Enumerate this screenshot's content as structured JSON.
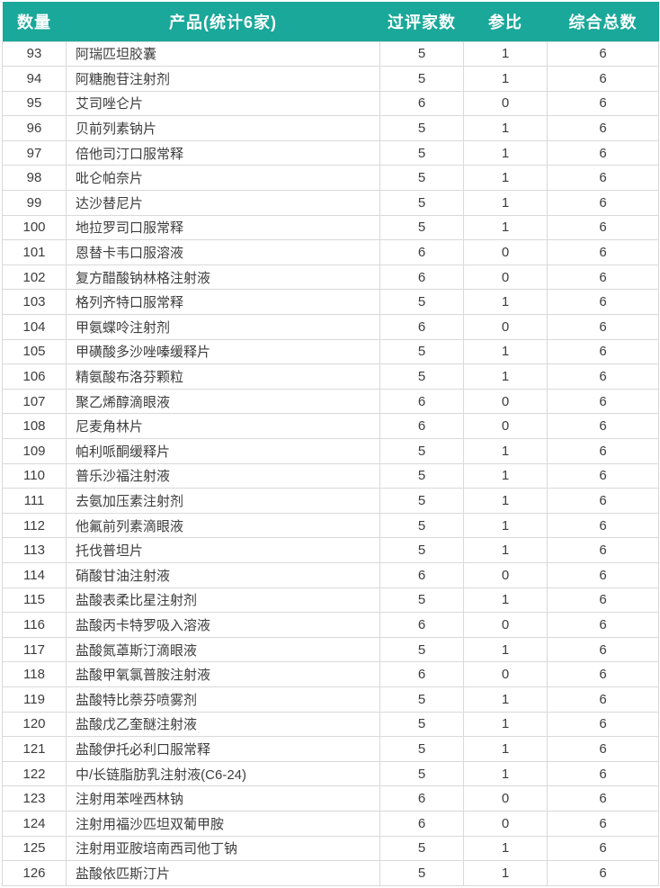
{
  "colors": {
    "header_bg": "#19a89a",
    "header_text": "#ffffff",
    "cell_text": "#3d3d3d",
    "border": "#d9d9d9"
  },
  "table": {
    "columns": [
      {
        "key": "no",
        "label": "数量"
      },
      {
        "key": "product",
        "label": "产品(统计6家)"
      },
      {
        "key": "passed",
        "label": "过评家数"
      },
      {
        "key": "reference",
        "label": "参比"
      },
      {
        "key": "total",
        "label": "综合总数"
      }
    ],
    "rows": [
      {
        "no": "93",
        "product": "阿瑞匹坦胶囊",
        "passed": "5",
        "reference": "1",
        "total": "6"
      },
      {
        "no": "94",
        "product": "阿糖胞苷注射剂",
        "passed": "5",
        "reference": "1",
        "total": "6"
      },
      {
        "no": "95",
        "product": "艾司唑仑片",
        "passed": "6",
        "reference": "0",
        "total": "6"
      },
      {
        "no": "96",
        "product": "贝前列素钠片",
        "passed": "5",
        "reference": "1",
        "total": "6"
      },
      {
        "no": "97",
        "product": "倍他司汀口服常释",
        "passed": "5",
        "reference": "1",
        "total": "6"
      },
      {
        "no": "98",
        "product": "吡仑帕奈片",
        "passed": "5",
        "reference": "1",
        "total": "6"
      },
      {
        "no": "99",
        "product": "达沙替尼片",
        "passed": "5",
        "reference": "1",
        "total": "6"
      },
      {
        "no": "100",
        "product": "地拉罗司口服常释",
        "passed": "5",
        "reference": "1",
        "total": "6"
      },
      {
        "no": "101",
        "product": "恩替卡韦口服溶液",
        "passed": "6",
        "reference": "0",
        "total": "6"
      },
      {
        "no": "102",
        "product": "复方醋酸钠林格注射液",
        "passed": "6",
        "reference": "0",
        "total": "6"
      },
      {
        "no": "103",
        "product": "格列齐特口服常释",
        "passed": "5",
        "reference": "1",
        "total": "6"
      },
      {
        "no": "104",
        "product": "甲氨蝶呤注射剂",
        "passed": "6",
        "reference": "0",
        "total": "6"
      },
      {
        "no": "105",
        "product": "甲磺酸多沙唑嗪缓释片",
        "passed": "5",
        "reference": "1",
        "total": "6"
      },
      {
        "no": "106",
        "product": "精氨酸布洛芬颗粒",
        "passed": "5",
        "reference": "1",
        "total": "6"
      },
      {
        "no": "107",
        "product": "聚乙烯醇滴眼液",
        "passed": "6",
        "reference": "0",
        "total": "6"
      },
      {
        "no": "108",
        "product": "尼麦角林片",
        "passed": "6",
        "reference": "0",
        "total": "6"
      },
      {
        "no": "109",
        "product": "帕利哌酮缓释片",
        "passed": "5",
        "reference": "1",
        "total": "6"
      },
      {
        "no": "110",
        "product": "普乐沙福注射液",
        "passed": "5",
        "reference": "1",
        "total": "6"
      },
      {
        "no": "111",
        "product": "去氨加压素注射剂",
        "passed": "5",
        "reference": "1",
        "total": "6"
      },
      {
        "no": "112",
        "product": "他氟前列素滴眼液",
        "passed": "5",
        "reference": "1",
        "total": "6"
      },
      {
        "no": "113",
        "product": "托伐普坦片",
        "passed": "5",
        "reference": "1",
        "total": "6"
      },
      {
        "no": "114",
        "product": "硝酸甘油注射液",
        "passed": "6",
        "reference": "0",
        "total": "6"
      },
      {
        "no": "115",
        "product": "盐酸表柔比星注射剂",
        "passed": "5",
        "reference": "1",
        "total": "6"
      },
      {
        "no": "116",
        "product": "盐酸丙卡特罗吸入溶液",
        "passed": "6",
        "reference": "0",
        "total": "6"
      },
      {
        "no": "117",
        "product": "盐酸氮䓬斯汀滴眼液",
        "passed": "5",
        "reference": "1",
        "total": "6"
      },
      {
        "no": "118",
        "product": "盐酸甲氧氯普胺注射液",
        "passed": "6",
        "reference": "0",
        "total": "6"
      },
      {
        "no": "119",
        "product": "盐酸特比萘芬喷雾剂",
        "passed": "5",
        "reference": "1",
        "total": "6"
      },
      {
        "no": "120",
        "product": "盐酸戊乙奎醚注射液",
        "passed": "5",
        "reference": "1",
        "total": "6"
      },
      {
        "no": "121",
        "product": "盐酸伊托必利口服常释",
        "passed": "5",
        "reference": "1",
        "total": "6"
      },
      {
        "no": "122",
        "product": "中/长链脂肪乳注射液(C6-24)",
        "passed": "5",
        "reference": "1",
        "total": "6"
      },
      {
        "no": "123",
        "product": "注射用苯唑西林钠",
        "passed": "6",
        "reference": "0",
        "total": "6"
      },
      {
        "no": "124",
        "product": "注射用福沙匹坦双葡甲胺",
        "passed": "6",
        "reference": "0",
        "total": "6"
      },
      {
        "no": "125",
        "product": "注射用亚胺培南西司他丁钠",
        "passed": "5",
        "reference": "1",
        "total": "6"
      },
      {
        "no": "126",
        "product": "盐酸依匹斯汀片",
        "passed": "5",
        "reference": "1",
        "total": "6"
      }
    ]
  }
}
